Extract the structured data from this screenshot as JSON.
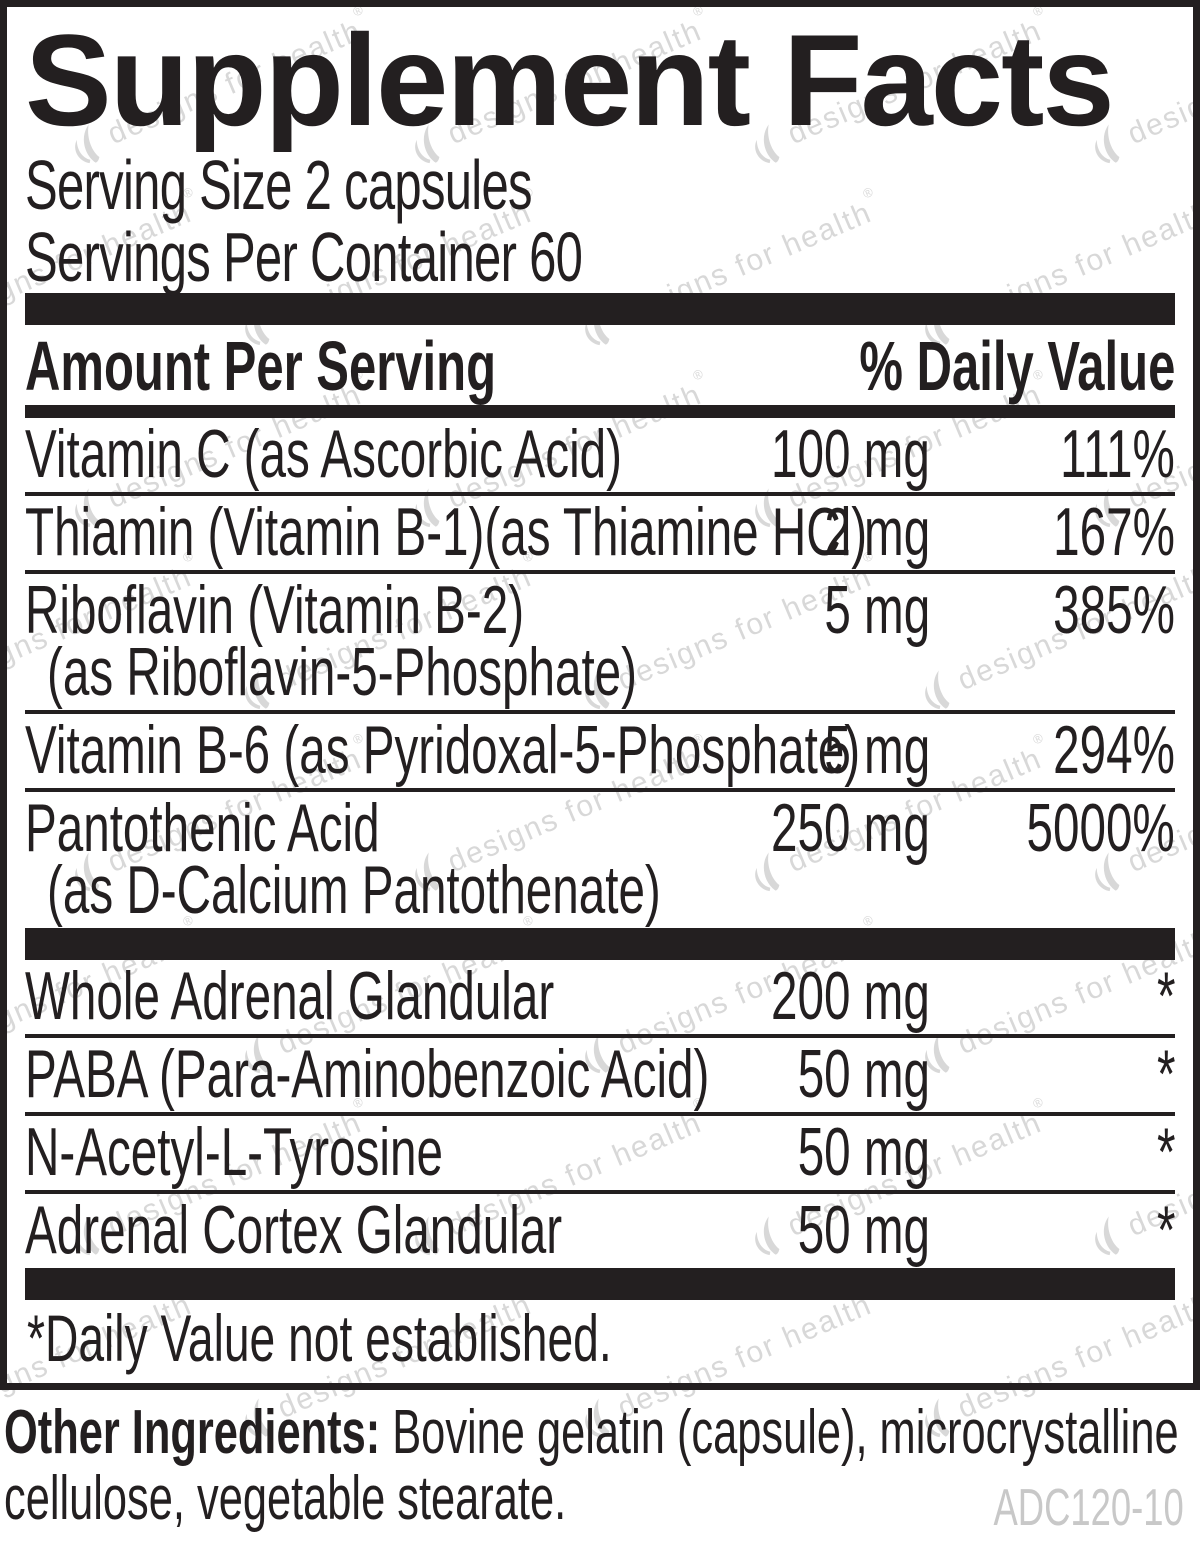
{
  "panel": {
    "title": "Supplement Facts",
    "serving_size": "Serving Size 2 capsules",
    "servings_per_container": "Servings Per Container 60",
    "header": {
      "amount_label": "Amount Per Serving",
      "daily_value_label": "% Daily Value"
    },
    "rows": [
      {
        "name": "Vitamin C (as Ascorbic Acid)",
        "amount": "100 mg",
        "dv": "111%"
      },
      {
        "name": "Thiamin (Vitamin B-1)(as Thiamine HCl)",
        "amount": "2 mg",
        "dv": "167%"
      },
      {
        "name": "Riboflavin (Vitamin B-2)",
        "name2": "(as Riboflavin-5-Phosphate)",
        "amount": "5 mg",
        "dv": "385%"
      },
      {
        "name": "Vitamin B-6 (as Pyridoxal-5-Phosphate)",
        "amount": "5 mg",
        "dv": "294%"
      },
      {
        "name": "Pantothenic Acid",
        "name2": "(as D-Calcium Pantothenate)",
        "amount": "250 mg",
        "dv": "5000%"
      },
      {
        "name": "Whole Adrenal Glandular",
        "amount": "200 mg",
        "dv": "*"
      },
      {
        "name": "PABA (Para-Aminobenzoic Acid)",
        "amount": "50 mg",
        "dv": "*"
      },
      {
        "name": "N-Acetyl-L-Tyrosine",
        "amount": "50 mg",
        "dv": "*"
      },
      {
        "name": "Adrenal Cortex Glandular",
        "amount": "50 mg",
        "dv": "*"
      }
    ],
    "footnote": "*Daily Value not established."
  },
  "footer": {
    "other_ingredients_label": "Other Ingredients:",
    "other_ingredients_line1": "Bovine gelatin (capsule), microcrystalline",
    "other_ingredients_line2": "cellulose, vegetable stearate.",
    "code": "ADC120-10"
  },
  "watermark": {
    "text": "designs for health",
    "reg_mark": "®",
    "color": "#d8d8d8"
  },
  "colors": {
    "ink": "#231f20",
    "watermark_gray": "#d8d8d8",
    "code_gray": "#c8c8c8"
  }
}
